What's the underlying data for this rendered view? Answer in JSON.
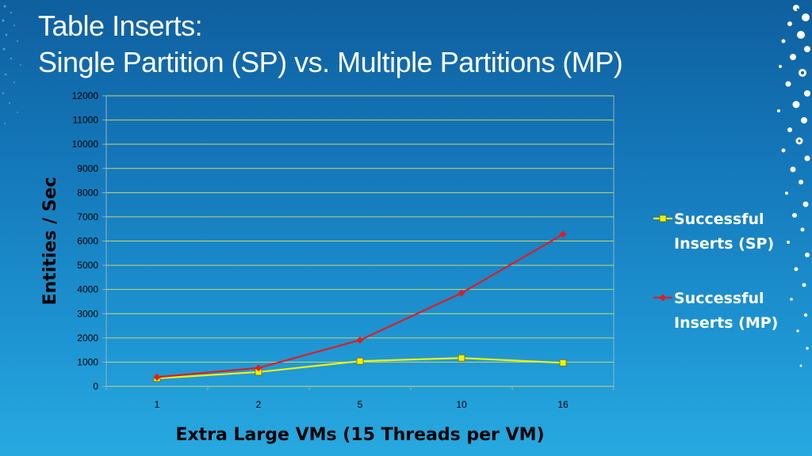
{
  "slide": {
    "title_line1": "Table Inserts:",
    "title_line2": "Single Partition (SP) vs. Multiple Partitions (MP)"
  },
  "chart_data": {
    "type": "line",
    "categories": [
      "1",
      "2",
      "5",
      "10",
      "16"
    ],
    "series": [
      {
        "name": "Successful Inserts (SP)",
        "values": [
          330,
          590,
          1040,
          1170,
          970
        ],
        "color": "#f0f20a",
        "marker": "square"
      },
      {
        "name": "Successful Inserts (MP)",
        "values": [
          380,
          760,
          1910,
          3850,
          6280
        ],
        "color": "#d81f26",
        "marker": "diamond"
      }
    ],
    "xlabel": "Extra Large VMs (15 Threads per VM)",
    "ylabel": "Entities / Sec",
    "ylim": [
      0,
      12000
    ],
    "ytick_step": 1000,
    "grid": true,
    "legend_position": "right",
    "legend_lines": [
      [
        "Successful",
        "Inserts (SP)"
      ],
      [
        "Successful",
        "Inserts (MP)"
      ]
    ],
    "gridline_color": "#c9d86a"
  }
}
